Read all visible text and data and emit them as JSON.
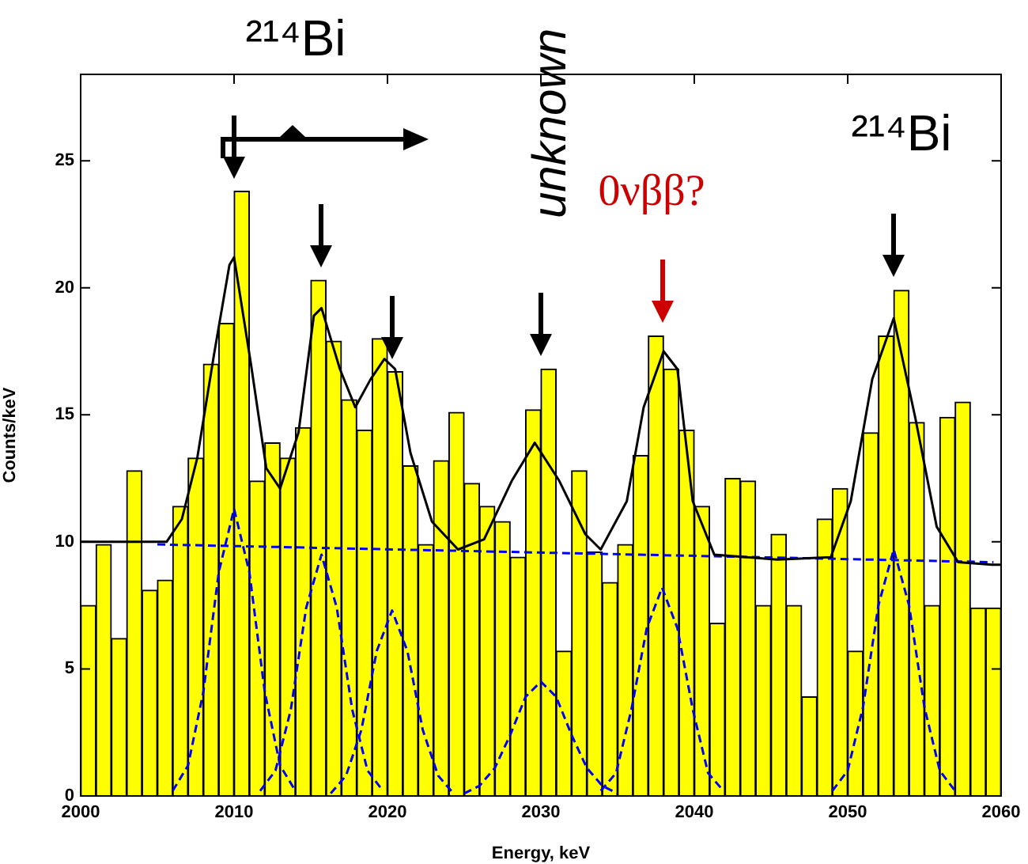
{
  "chart_data": {
    "type": "histogram",
    "xlabel": "Energy, keV",
    "ylabel": "Counts/keV",
    "bins": [
      2000,
      2001,
      2002,
      2003,
      2004,
      2005,
      2006,
      2007,
      2008,
      2009,
      2010,
      2011,
      2012,
      2013,
      2014,
      2015,
      2016,
      2017,
      2018,
      2019,
      2020,
      2021,
      2022,
      2023,
      2024,
      2025,
      2026,
      2027,
      2028,
      2029,
      2030,
      2031,
      2032,
      2033,
      2034,
      2035,
      2036,
      2037,
      2038,
      2039,
      2040,
      2041,
      2042,
      2043,
      2044,
      2045,
      2046,
      2047,
      2048,
      2049,
      2050,
      2051,
      2052,
      2053,
      2054,
      2055,
      2056,
      2057,
      2058,
      2059,
      2060
    ],
    "series": [
      {
        "color": "#ffff00",
        "values": [
          7.5,
          9.9,
          6.2,
          12.8,
          8.1,
          8.5,
          11.4,
          13.3,
          17.0,
          18.6,
          23.8,
          12.4,
          13.9,
          13.3,
          14.5,
          20.3,
          17.9,
          15.6,
          14.4,
          18.0,
          16.7,
          13.0,
          9.9,
          13.2,
          15.1,
          12.3,
          11.4,
          10.8,
          9.4,
          15.2,
          16.8,
          5.7,
          12.8,
          9.6,
          8.4,
          9.9,
          13.4,
          18.1,
          16.8,
          14.4,
          11.4,
          6.8,
          12.5,
          12.4,
          7.5,
          10.3,
          7.5,
          3.9,
          10.9,
          12.1,
          5.7,
          14.3,
          18.1,
          19.9,
          14.7,
          7.5,
          14.9,
          15.5,
          7.4,
          7.4
        ]
      },
      {
        "type": "line",
        "color": "#000000",
        "line_style": "solid",
        "x": [
          2000,
          2005.6,
          2006.6,
          2007.6,
          2008.7,
          2009.7,
          2010.0,
          2011.1,
          2012.1,
          2013.0,
          2014.2,
          2015.2,
          2015.7,
          2016.9,
          2017.9,
          2018.9,
          2019.8,
          2020.5,
          2021.5,
          2022.9,
          2024.6,
          2026.3,
          2028.1,
          2029.6,
          2031.2,
          2032.9,
          2033.9,
          2035.6,
          2036.7,
          2038.0,
          2038.9,
          2039.9,
          2041.3,
          2045.4,
          2048.9,
          2050.2,
          2051.6,
          2053.0,
          2054.4,
          2055.8,
          2057.2,
          2059.4,
          2060
        ],
        "values": [
          10.0,
          10.0,
          10.9,
          13.3,
          17.4,
          20.9,
          21.2,
          17.0,
          12.9,
          12.1,
          14.3,
          18.9,
          19.2,
          16.8,
          15.3,
          16.4,
          17.2,
          16.8,
          13.5,
          10.8,
          9.7,
          10.1,
          12.4,
          13.9,
          12.4,
          10.3,
          9.7,
          11.6,
          15.3,
          17.5,
          16.8,
          11.6,
          9.5,
          9.3,
          9.4,
          11.6,
          16.4,
          18.8,
          14.9,
          10.6,
          9.2,
          9.1,
          9.1
        ]
      },
      {
        "type": "line",
        "color": "#0000ff",
        "line_style": "dashed",
        "x": [
          2005,
          2059.5
        ],
        "values": [
          9.9,
          9.2
        ]
      },
      {
        "type": "line",
        "color": "#0000ff",
        "line_style": "dashed",
        "x": [
          2006,
          2007,
          2008,
          2009,
          2010,
          2011,
          2012,
          2013,
          2014
        ],
        "values": [
          0.2,
          1.2,
          4.1,
          8.8,
          11.3,
          8.8,
          4.1,
          1.2,
          0.2
        ]
      },
      {
        "type": "line",
        "color": "#0000ff",
        "line_style": "dashed",
        "x": [
          2011.7,
          2012.7,
          2013.7,
          2014.7,
          2015.7,
          2016.7,
          2017.7,
          2018.7,
          2019.7
        ],
        "values": [
          0.2,
          1.0,
          3.4,
          7.4,
          9.5,
          7.4,
          3.4,
          1.0,
          0.2
        ]
      },
      {
        "type": "line",
        "color": "#0000ff",
        "line_style": "dashed",
        "x": [
          2016.3,
          2017.3,
          2018.3,
          2019.3,
          2020.3,
          2021.3,
          2022.3,
          2023.3,
          2024.3
        ],
        "values": [
          0.1,
          0.8,
          2.6,
          5.7,
          7.3,
          5.7,
          2.6,
          0.8,
          0.1
        ]
      },
      {
        "type": "line",
        "color": "#0000ff",
        "line_style": "dashed",
        "x": [
          2025,
          2026,
          2027,
          2028,
          2029,
          2030,
          2031,
          2032,
          2033,
          2034,
          2035
        ],
        "values": [
          0.1,
          0.4,
          1.1,
          2.4,
          3.9,
          4.5,
          3.9,
          2.4,
          1.1,
          0.4,
          0.1
        ]
      },
      {
        "type": "line",
        "color": "#0000ff",
        "line_style": "dashed",
        "x": [
          2033.9,
          2034.9,
          2035.9,
          2036.9,
          2037.9,
          2038.9,
          2039.9,
          2040.9,
          2041.9
        ],
        "values": [
          0.2,
          0.9,
          3.4,
          6.6,
          8.2,
          6.6,
          3.4,
          0.9,
          0.2
        ]
      },
      {
        "type": "line",
        "color": "#0000ff",
        "line_style": "dashed",
        "x": [
          2049,
          2050,
          2051,
          2052,
          2053,
          2054,
          2055,
          2056,
          2057
        ],
        "values": [
          0.2,
          1.0,
          3.5,
          7.5,
          9.7,
          7.5,
          3.5,
          1.0,
          0.2
        ]
      }
    ],
    "xlim": [
      2000,
      2060
    ],
    "xticks": [
      2000,
      2010,
      2020,
      2030,
      2040,
      2050,
      2060
    ],
    "ylim": [
      0,
      28.4
    ],
    "yticks": [
      0,
      5,
      10,
      15,
      20,
      25
    ],
    "marker": "none",
    "legend": false,
    "grid": false,
    "annotations": [
      "²¹⁴Bi",
      "unknown",
      "0νββ?",
      "²¹⁴Bi"
    ]
  }
}
